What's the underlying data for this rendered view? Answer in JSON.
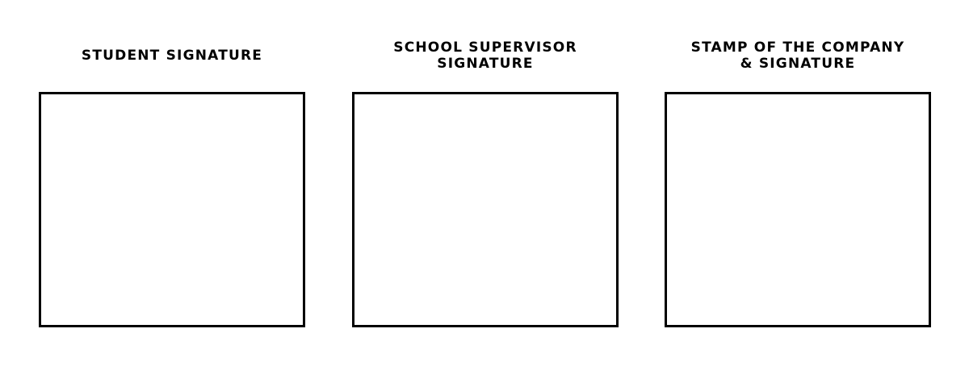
{
  "signatures": [
    {
      "lines": [
        "STUDENT SIGNATURE"
      ]
    },
    {
      "lines": [
        "SCHOOL SUPERVISOR",
        "SIGNATURE"
      ]
    },
    {
      "lines": [
        "STAMP OF THE COMPANY",
        "& SIGNATURE"
      ]
    }
  ],
  "colors": {
    "text": "#000000",
    "border": "#000000",
    "background": "#ffffff"
  }
}
